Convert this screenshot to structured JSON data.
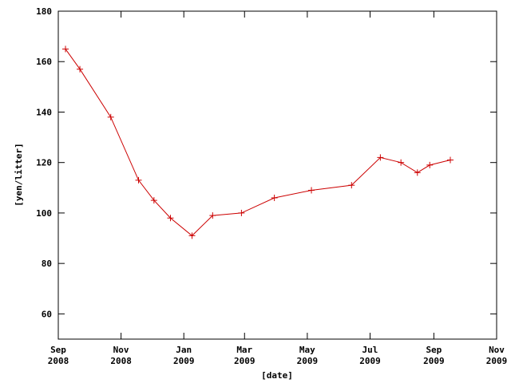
{
  "chart_data": {
    "type": "line",
    "title": "",
    "xlabel": "[date]",
    "ylabel": "[yen/litter]",
    "ylim": [
      50,
      180
    ],
    "xlim": [
      "2008-09-01",
      "2009-11-01"
    ],
    "grid": false,
    "legend": "none",
    "colors": {
      "series": "#cc0000",
      "axes": "#000000",
      "background": "#ffffff"
    },
    "x_ticks": [
      {
        "date": "2008-09-01",
        "month": "Sep",
        "year": "2008"
      },
      {
        "date": "2008-11-01",
        "month": "Nov",
        "year": "2008"
      },
      {
        "date": "2009-01-01",
        "month": "Jan",
        "year": "2009"
      },
      {
        "date": "2009-03-01",
        "month": "Mar",
        "year": "2009"
      },
      {
        "date": "2009-05-01",
        "month": "May",
        "year": "2009"
      },
      {
        "date": "2009-07-01",
        "month": "Jul",
        "year": "2009"
      },
      {
        "date": "2009-09-01",
        "month": "Sep",
        "year": "2009"
      },
      {
        "date": "2009-11-01",
        "month": "Nov",
        "year": "2009"
      }
    ],
    "y_ticks": [
      60,
      80,
      100,
      120,
      140,
      160,
      180
    ],
    "series": [
      {
        "x": [
          "2008-09-08",
          "2008-09-22",
          "2008-10-22",
          "2008-11-18",
          "2008-12-03",
          "2008-12-19",
          "2009-01-09",
          "2009-01-29",
          "2009-02-26",
          "2009-03-30",
          "2009-05-05",
          "2009-06-13",
          "2009-07-11",
          "2009-07-31",
          "2009-08-16",
          "2009-08-28",
          "2009-09-17"
        ],
        "values": [
          165,
          157,
          138,
          113,
          105,
          98,
          91,
          99,
          100,
          106,
          109,
          111,
          122,
          120,
          116,
          119,
          121
        ]
      }
    ]
  }
}
